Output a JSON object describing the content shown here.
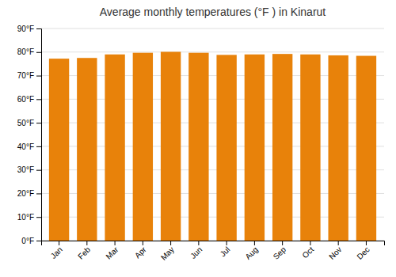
{
  "chart_data": {
    "type": "bar",
    "title": "Average monthly temperatures (°F ) in Kinarut",
    "categories": [
      "Jan",
      "Feb",
      "Mar",
      "Apr",
      "May",
      "Jun",
      "Jul",
      "Aug",
      "Sep",
      "Oct",
      "Nov",
      "Dec"
    ],
    "values": [
      77.2,
      77.5,
      79.0,
      79.7,
      80.1,
      79.7,
      78.8,
      79.0,
      79.2,
      79.0,
      78.6,
      78.4
    ],
    "color": "#E8820A",
    "ylim": [
      0,
      90
    ],
    "yticks": [
      {
        "value": 0,
        "label": "0°F"
      },
      {
        "value": 10,
        "label": "10°F"
      },
      {
        "value": 20,
        "label": "20°F"
      },
      {
        "value": 30,
        "label": "30°F"
      },
      {
        "value": 40,
        "label": "40°F"
      },
      {
        "value": 50,
        "label": "50°F"
      },
      {
        "value": 60,
        "label": "60°F"
      },
      {
        "value": 70,
        "label": "70°F"
      },
      {
        "value": 80,
        "label": "80°F"
      },
      {
        "value": 90,
        "label": "90°F"
      }
    ],
    "grid": true
  }
}
